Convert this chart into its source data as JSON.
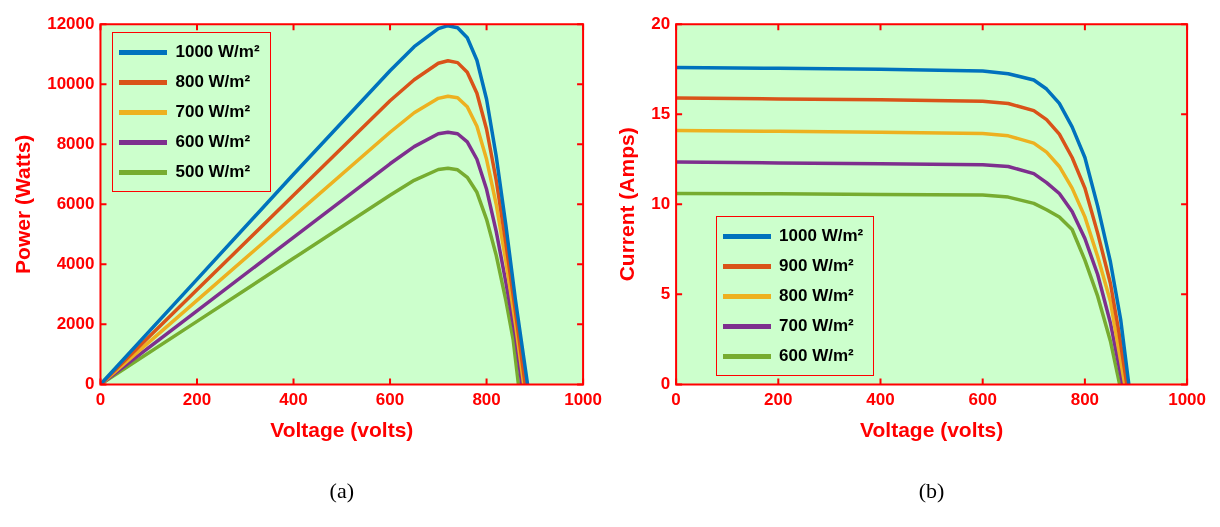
{
  "chart_data": [
    {
      "type": "line",
      "xlabel": "Voltage (volts)",
      "ylabel": "Power (Watts)",
      "annotations": [
        "(a)"
      ],
      "xlim": [
        0,
        1000
      ],
      "xticks": [
        0,
        200,
        400,
        600,
        800,
        1000
      ],
      "ylim": [
        0,
        12000
      ],
      "yticks": [
        0,
        2000,
        4000,
        6000,
        8000,
        10000,
        12000
      ],
      "grid": false,
      "legend": "top left",
      "marker": "none",
      "line_style": "solid",
      "series": [
        {
          "name": "1000 W/m²",
          "color": "#0072bd",
          "x": [
            0,
            200,
            400,
            600,
            650,
            700,
            720,
            740,
            760,
            780,
            800,
            820,
            840,
            860,
            885
          ],
          "values": [
            0,
            3500,
            7000,
            10450,
            11250,
            11850,
            11950,
            11880,
            11550,
            10800,
            9500,
            7600,
            5300,
            2800,
            0
          ]
        },
        {
          "name": "800 W/m²",
          "color": "#d95319",
          "x": [
            0,
            200,
            400,
            600,
            650,
            700,
            720,
            740,
            760,
            780,
            800,
            820,
            840,
            860,
            880
          ],
          "values": [
            0,
            3150,
            6300,
            9450,
            10150,
            10700,
            10780,
            10720,
            10400,
            9700,
            8500,
            6800,
            4700,
            2400,
            0
          ]
        },
        {
          "name": "700 W/m²",
          "color": "#edb120",
          "x": [
            0,
            200,
            400,
            600,
            650,
            700,
            720,
            740,
            760,
            780,
            800,
            820,
            840,
            860,
            877
          ],
          "values": [
            0,
            2800,
            5600,
            8400,
            9050,
            9530,
            9600,
            9550,
            9250,
            8600,
            7500,
            6000,
            4100,
            2000,
            0
          ]
        },
        {
          "name": "600 W/m²",
          "color": "#7e2f8e",
          "x": [
            0,
            200,
            400,
            600,
            650,
            700,
            720,
            740,
            760,
            780,
            800,
            820,
            840,
            860,
            873
          ],
          "values": [
            0,
            2450,
            4900,
            7350,
            7920,
            8350,
            8400,
            8350,
            8080,
            7500,
            6500,
            5100,
            3400,
            1600,
            0
          ]
        },
        {
          "name": "500 W/m²",
          "color": "#77ac30",
          "x": [
            0,
            200,
            400,
            600,
            650,
            700,
            720,
            740,
            760,
            780,
            800,
            820,
            840,
            855,
            866
          ],
          "values": [
            0,
            2100,
            4200,
            6300,
            6800,
            7160,
            7200,
            7150,
            6900,
            6400,
            5500,
            4300,
            2800,
            1500,
            0
          ]
        }
      ]
    },
    {
      "type": "line",
      "xlabel": "Voltage (volts)",
      "ylabel": "Current (Amps)",
      "annotations": [
        "(b)"
      ],
      "xlim": [
        0,
        1000
      ],
      "xticks": [
        0,
        200,
        400,
        600,
        800,
        1000
      ],
      "ylim": [
        0,
        20
      ],
      "yticks": [
        0,
        5,
        10,
        15,
        20
      ],
      "grid": false,
      "legend": "bottom left",
      "marker": "none",
      "line_style": "solid",
      "series": [
        {
          "name": "1000 W/m²",
          "color": "#0072bd",
          "x": [
            0,
            200,
            400,
            600,
            650,
            700,
            725,
            750,
            775,
            800,
            825,
            850,
            870,
            886
          ],
          "values": [
            17.6,
            17.55,
            17.5,
            17.4,
            17.25,
            16.9,
            16.4,
            15.6,
            14.3,
            12.6,
            9.9,
            6.8,
            3.6,
            0
          ]
        },
        {
          "name": "900 W/m²",
          "color": "#d95319",
          "x": [
            0,
            200,
            400,
            600,
            650,
            700,
            725,
            750,
            775,
            800,
            825,
            850,
            866,
            882
          ],
          "values": [
            15.9,
            15.85,
            15.8,
            15.72,
            15.6,
            15.2,
            14.7,
            13.9,
            12.6,
            10.9,
            8.4,
            5.6,
            3.0,
            0
          ]
        },
        {
          "name": "800 W/m²",
          "color": "#edb120",
          "x": [
            0,
            200,
            400,
            600,
            650,
            700,
            725,
            750,
            775,
            800,
            825,
            850,
            862,
            878
          ],
          "values": [
            14.1,
            14.05,
            14.0,
            13.93,
            13.8,
            13.4,
            12.9,
            12.1,
            10.9,
            9.3,
            7.1,
            4.6,
            2.6,
            0
          ]
        },
        {
          "name": "700 W/m²",
          "color": "#7e2f8e",
          "x": [
            0,
            200,
            400,
            600,
            650,
            700,
            725,
            750,
            775,
            800,
            825,
            850,
            874
          ],
          "values": [
            12.35,
            12.3,
            12.25,
            12.2,
            12.1,
            11.7,
            11.2,
            10.6,
            9.6,
            8.1,
            6.1,
            3.4,
            0
          ]
        },
        {
          "name": "600 W/m²",
          "color": "#77ac30",
          "x": [
            0,
            200,
            400,
            600,
            650,
            700,
            725,
            750,
            775,
            800,
            825,
            850,
            868
          ],
          "values": [
            10.6,
            10.58,
            10.55,
            10.52,
            10.4,
            10.05,
            9.7,
            9.3,
            8.6,
            6.9,
            4.9,
            2.4,
            0
          ]
        }
      ]
    }
  ]
}
